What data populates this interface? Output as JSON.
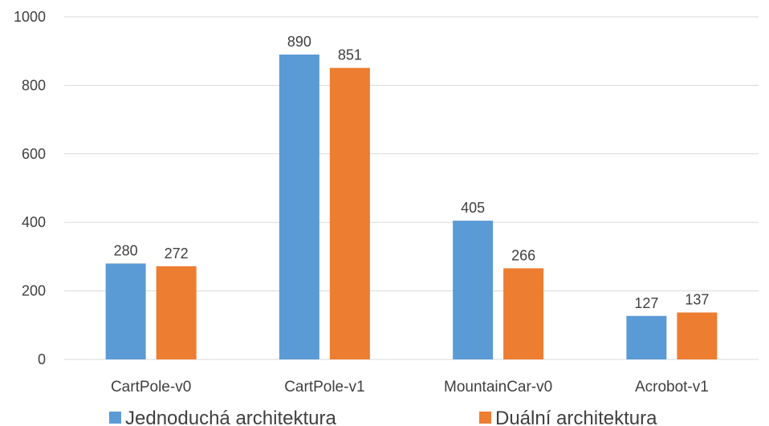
{
  "chart_data": {
    "type": "bar",
    "title": "",
    "xlabel": "",
    "ylabel": "",
    "ylim": [
      0,
      1000
    ],
    "yticks": [
      0,
      200,
      400,
      600,
      800,
      1000
    ],
    "grid": true,
    "legend_position": "bottom",
    "categories": [
      "CartPole-v0",
      "CartPole-v1",
      "MountainCar-v0",
      "Acrobot-v1"
    ],
    "series": [
      {
        "name": "Jednoduchá architektura",
        "color": "#5b9bd5",
        "values": [
          280,
          890,
          405,
          127
        ]
      },
      {
        "name": "Duální architektura",
        "color": "#ed7d31",
        "values": [
          272,
          851,
          266,
          137
        ]
      }
    ]
  }
}
